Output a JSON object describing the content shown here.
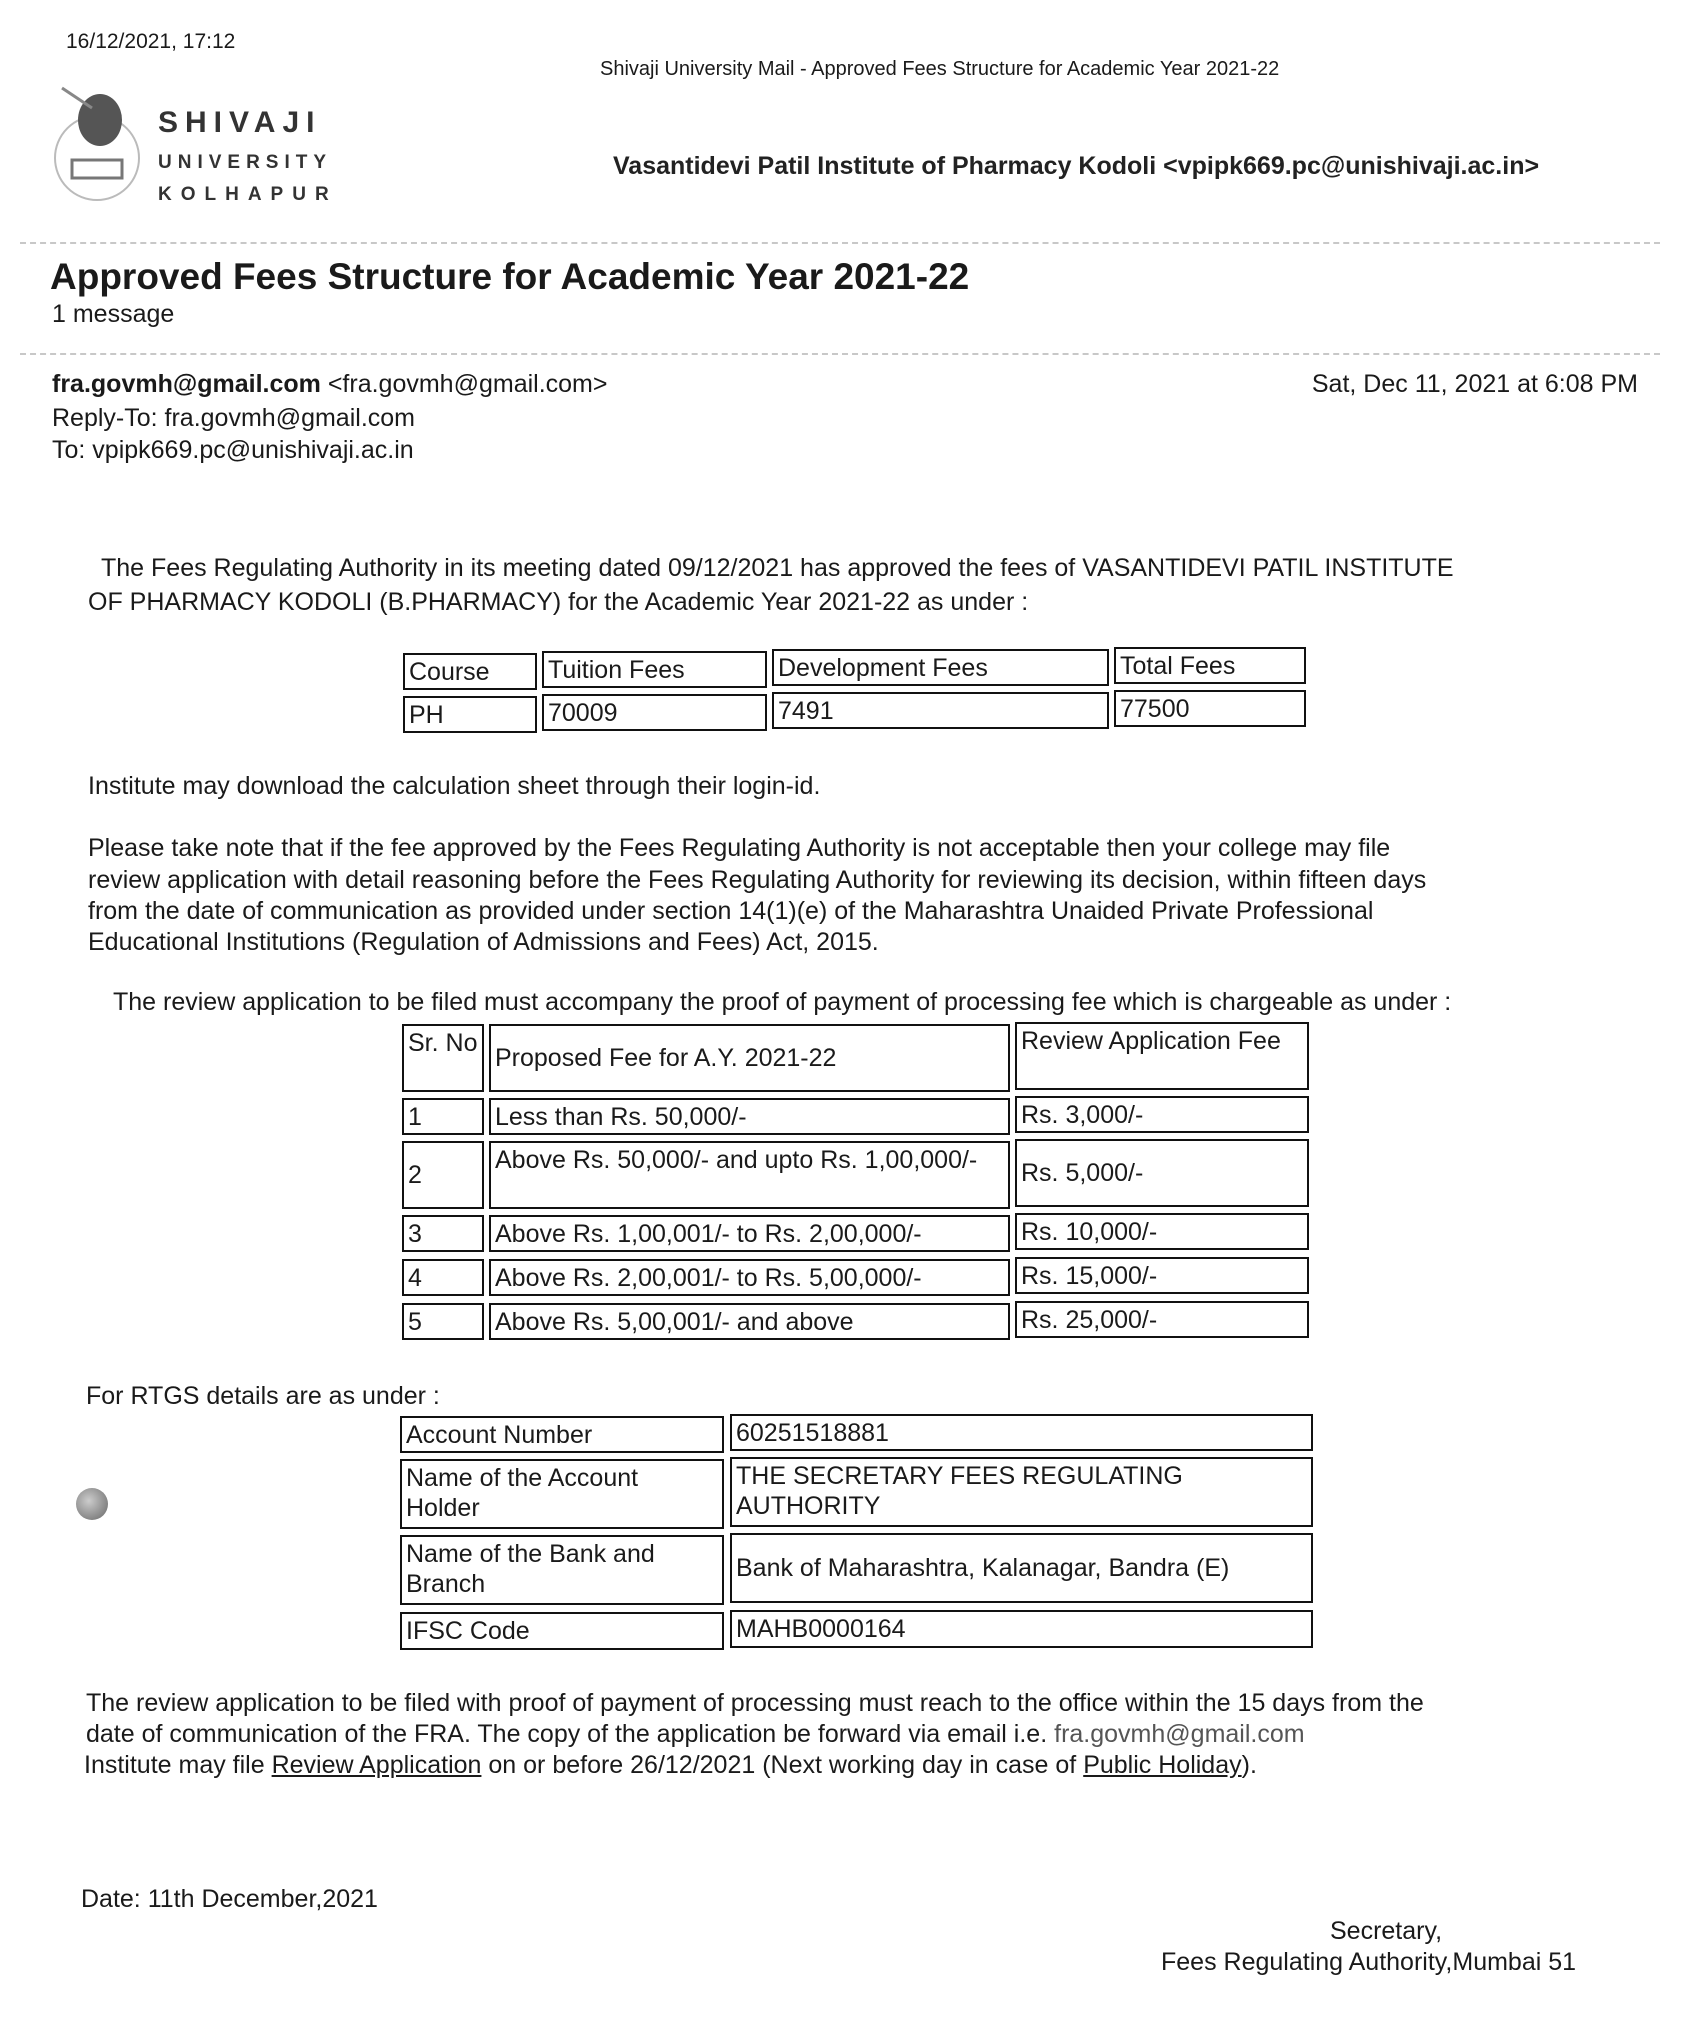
{
  "print_header": {
    "datetime": "16/12/2021, 17:12",
    "mail_title": "Shivaji University Mail - Approved Fees Structure for Academic Year 2021-22"
  },
  "logo": {
    "line1": "SHIVAJI",
    "line2": "UNIVERSITY",
    "line3": "KOLHAPUR"
  },
  "account": "Vasantidevi Patil Institute of Pharmacy Kodoli <vpipk669.pc@unishivaji.ac.in>",
  "subject": "Approved Fees Structure for Academic Year 2021-22",
  "message_count": "1 message",
  "email": {
    "from_name": "fra.govmh@gmail.com",
    "from_addr": "<fra.govmh@gmail.com>",
    "reply_to": "Reply-To: fra.govmh@gmail.com",
    "to": "To: vpipk669.pc@unishivaji.ac.in",
    "date": "Sat, Dec 11, 2021 at 6:08 PM"
  },
  "body": {
    "para1_line1": "The Fees Regulating Authority in its meeting dated 09/12/2021 has approved the fees of VASANTIDEVI PATIL INSTITUTE",
    "para1_line2": "OF PHARMACY KODOLI (B.PHARMACY) for the Academic Year 2021-22 as under :",
    "fees_table": {
      "headers": [
        "Course",
        "Tuition Fees",
        "Development Fees",
        "Total Fees"
      ],
      "row": [
        "PH",
        "70009",
        "7491",
        "77500"
      ]
    },
    "download_note": "Institute may download the calculation sheet through their login-id.",
    "para2_lines": [
      "Please take note that if the fee approved by the Fees Regulating Authority is not acceptable then your college may file",
      "review application with detail reasoning before the Fees Regulating Authority for reviewing its decision, within fifteen days",
      "from the date of communication as provided under section 14(1)(e) of the Maharashtra Unaided Private Professional",
      "Educational Institutions (Regulation of Admissions and Fees) Act, 2015."
    ],
    "review_intro": "The review application to be filed must accompany the proof of payment of processing fee which is chargeable as under :",
    "review_table": {
      "headers": [
        "Sr. No",
        "Proposed Fee for A.Y. 2021-22",
        "Review Application Fee"
      ],
      "rows": [
        [
          "1",
          "Less than Rs. 50,000/-",
          "Rs. 3,000/-"
        ],
        [
          "2",
          "Above Rs. 50,000/- and upto Rs. 1,00,000/-",
          "Rs. 5,000/-"
        ],
        [
          "3",
          "Above Rs. 1,00,001/- to Rs. 2,00,000/-",
          "Rs. 10,000/-"
        ],
        [
          "4",
          "Above Rs. 2,00,001/- to Rs. 5,00,000/-",
          "Rs. 15,000/-"
        ],
        [
          "5",
          "Above Rs. 5,00,001/- and above",
          "Rs. 25,000/-"
        ]
      ]
    },
    "rtgs_intro": "For RTGS details are as under :",
    "rtgs_table": [
      [
        "Account Number",
        "60251518881"
      ],
      [
        "Name of the Account Holder",
        "THE SECRETARY FEES REGULATING AUTHORITY"
      ],
      [
        "Name of the Bank and Branch",
        "Bank of Maharashtra, Kalanagar, Bandra (E)"
      ],
      [
        "IFSC Code",
        "MAHB0000164"
      ]
    ],
    "final_line1": "The review application to be filed with proof of payment of processing must reach to the office within the 15 days from the",
    "final_line2": "date of communication of the FRA. The copy of the application be forward via email i.e.",
    "final_email": "fra.govmh@gmail.com",
    "final_line3_a": "Institute may file",
    "final_link1": "Review Application",
    "final_line3_b": "on or before 26/12/2021 (Next working day in case of",
    "final_link2": "Public Holiday",
    "final_line3_c": ").",
    "date_line": "Date: 11th December,2021",
    "sign1": "Secretary,",
    "sign2": "Fees Regulating Authority,Mumbai 51"
  }
}
